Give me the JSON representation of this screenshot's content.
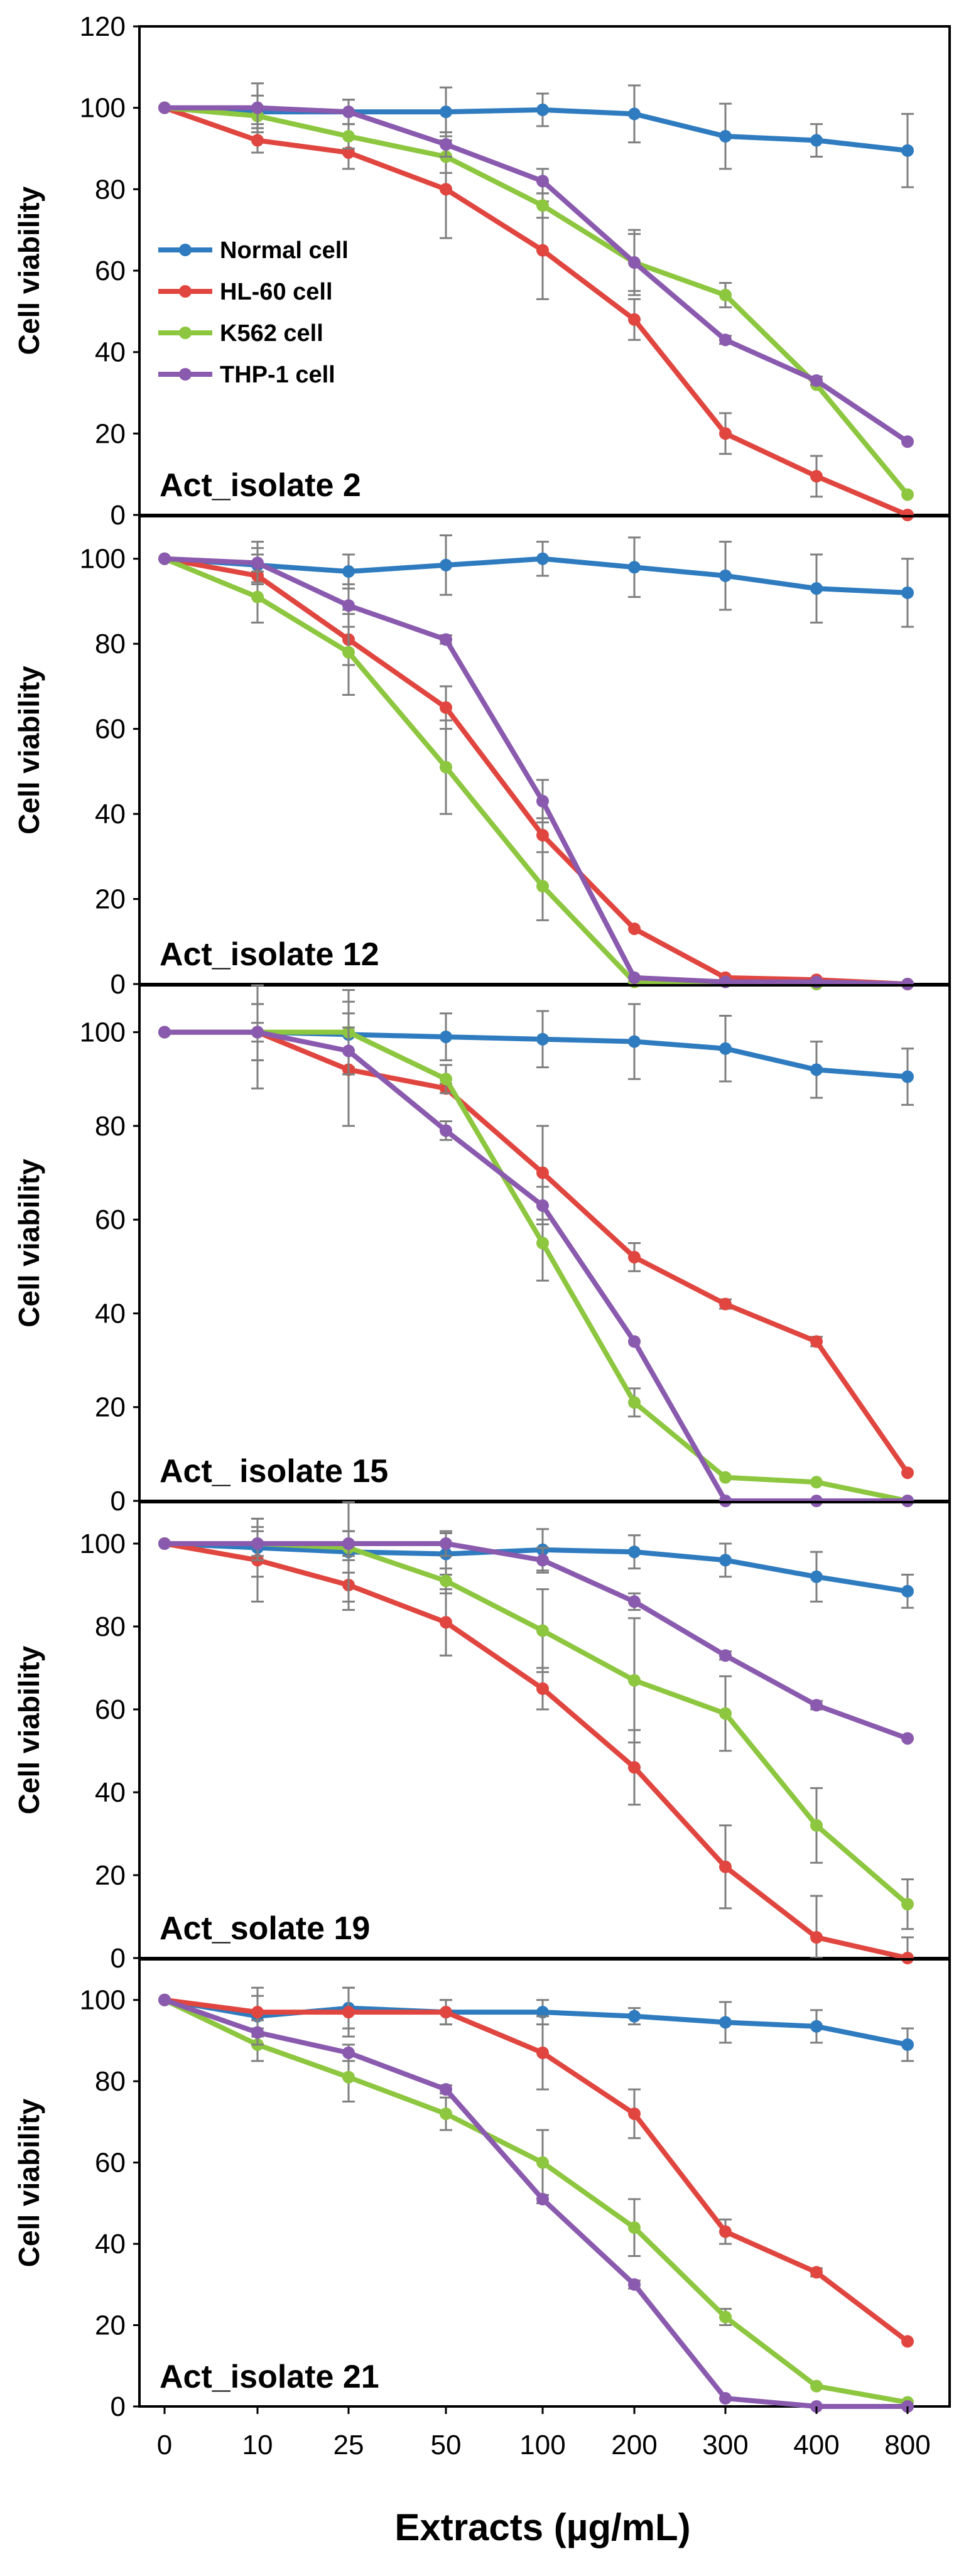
{
  "chart_data": {
    "type": "line",
    "x_categories": [
      "0",
      "10",
      "25",
      "50",
      "100",
      "200",
      "300",
      "400",
      "800"
    ],
    "xlabel": "Extracts (µg/mL)",
    "ylabel": "Cell viability",
    "series_styles": [
      {
        "name": "Normal cell",
        "color": "#2E7BBF"
      },
      {
        "name": "HL-60 cell",
        "color": "#E0463F"
      },
      {
        "name": "K562 cell",
        "color": "#8DC63F"
      },
      {
        "name": "THP-1 cell",
        "color": "#8A5AAE"
      }
    ],
    "panels": [
      {
        "label": "Act_isolate 2",
        "ylim": [
          0,
          120
        ],
        "yticks": [
          "0",
          "20",
          "40",
          "60",
          "80",
          "100",
          "120"
        ],
        "legend": "middle-left",
        "series": [
          {
            "name": "Normal cell",
            "values": [
              100,
              99,
              99,
              99,
              99.5,
              98.5,
              93,
              92,
              89.5
            ],
            "errors": [
              0,
              4,
              3,
              6,
              4,
              7,
              8,
              4,
              9
            ]
          },
          {
            "name": "HL-60 cell",
            "values": [
              100,
              92,
              89,
              80,
              65,
              48,
              20,
              9.5,
              0
            ],
            "errors": [
              0,
              3,
              4,
              12,
              12,
              5,
              5,
              5,
              0
            ]
          },
          {
            "name": "K562 cell",
            "values": [
              100,
              98,
              93,
              88,
              76,
              62,
              54,
              32,
              5
            ],
            "errors": [
              0,
              2,
              3,
              4,
              3,
              8,
              3,
              0,
              0
            ]
          },
          {
            "name": "THP-1 cell",
            "values": [
              100,
              100,
              99,
              91,
              82,
              62,
              43,
              33,
              18
            ],
            "errors": [
              0,
              6,
              3,
              3,
              3,
              7,
              1,
              1,
              0
            ]
          }
        ]
      },
      {
        "label": "Act_isolate 12",
        "ylim": [
          0,
          110
        ],
        "yticks": [
          "0",
          "20",
          "40",
          "60",
          "80",
          "100"
        ],
        "legend": "none",
        "series": [
          {
            "name": "Normal cell",
            "values": [
              100,
              98.5,
              97,
              98.5,
              100,
              98,
              96,
              93,
              92
            ],
            "errors": [
              0,
              4,
              4,
              7,
              4,
              7,
              8,
              8,
              8
            ]
          },
          {
            "name": "HL-60 cell",
            "values": [
              100,
              96,
              81,
              65,
              35,
              13,
              1.5,
              1,
              0
            ],
            "errors": [
              0,
              5,
              6,
              5,
              4,
              0,
              0,
              0,
              0
            ]
          },
          {
            "name": "K562 cell",
            "values": [
              100,
              91,
              78,
              51,
              23,
              0.5,
              0.5,
              0,
              0
            ],
            "errors": [
              0,
              6,
              10,
              11,
              8,
              0,
              0,
              0,
              0
            ]
          },
          {
            "name": "THP-1 cell",
            "values": [
              100,
              99,
              89,
              81,
              43,
              1.5,
              0.5,
              0.5,
              0
            ],
            "errors": [
              0,
              5,
              5,
              1,
              5,
              0,
              0,
              0,
              0
            ]
          }
        ]
      },
      {
        "label": "Act_ isolate 15",
        "ylim": [
          0,
          110
        ],
        "yticks": [
          "0",
          "20",
          "40",
          "60",
          "80",
          "100"
        ],
        "legend": "none",
        "series": [
          {
            "name": "Normal cell",
            "values": [
              100,
              100,
              99.5,
              99,
              98.5,
              98,
              96.5,
              92,
              90.5
            ],
            "errors": [
              0,
              12,
              7,
              5,
              6,
              8,
              7,
              6,
              6
            ]
          },
          {
            "name": "HL-60 cell",
            "values": [
              100,
              100,
              92,
              88,
              70,
              52,
              42,
              34,
              6
            ],
            "errors": [
              0,
              2,
              12,
              1,
              10,
              3,
              1,
              1,
              0
            ]
          },
          {
            "name": "K562 cell",
            "values": [
              100,
              100,
              100,
              90,
              55,
              21,
              5,
              4,
              0
            ],
            "errors": [
              0,
              6,
              9,
              3,
              8,
              3,
              0,
              0,
              0
            ]
          },
          {
            "name": "THP-1 cell",
            "values": [
              100,
              100,
              96,
              79,
              63,
              34,
              0,
              0,
              0
            ],
            "errors": [
              0,
              6,
              5,
              2,
              4,
              0,
              0,
              0,
              0
            ]
          }
        ]
      },
      {
        "label": "Act_solate 19",
        "ylim": [
          0,
          110
        ],
        "yticks": [
          "0",
          "20",
          "40",
          "60",
          "80",
          "100"
        ],
        "legend": "none",
        "series": [
          {
            "name": "Normal cell",
            "values": [
              100,
              99,
              98,
              97.5,
              98.5,
              98,
              96,
              92,
              88.5
            ],
            "errors": [
              0,
              7,
              5,
              5,
              5,
              4,
              4,
              6,
              4
            ]
          },
          {
            "name": "HL-60 cell",
            "values": [
              100,
              96,
              90,
              81,
              65,
              46,
              22,
              5,
              0
            ],
            "errors": [
              0,
              10,
              6,
              8,
              5,
              9,
              10,
              10,
              5
            ]
          },
          {
            "name": "K562 cell",
            "values": [
              100,
              100,
              99,
              91,
              79,
              67,
              59,
              32,
              13
            ],
            "errors": [
              0,
              4,
              13,
              3,
              10,
              15,
              9,
              9,
              6
            ]
          },
          {
            "name": "THP-1 cell",
            "values": [
              100,
              100,
              100,
              100,
              96,
              86,
              73,
              61,
              53
            ],
            "errors": [
              0,
              3,
              3,
              3,
              3,
              2,
              1,
              1,
              0
            ]
          }
        ]
      },
      {
        "label": "Act_isolate 21",
        "ylim": [
          0,
          110
        ],
        "yticks": [
          "0",
          "20",
          "40",
          "60",
          "80",
          "100"
        ],
        "legend": "none",
        "series": [
          {
            "name": "Normal cell",
            "values": [
              100,
              96,
              98,
              97,
              97,
              96,
              94.5,
              93.5,
              89
            ],
            "errors": [
              0,
              5,
              5,
              3,
              3,
              2,
              5,
              4,
              4
            ]
          },
          {
            "name": "HL-60 cell",
            "values": [
              100,
              97,
              97,
              97,
              87,
              72,
              43,
              33,
              16
            ],
            "errors": [
              0,
              6,
              6,
              3,
              9,
              6,
              3,
              1,
              0
            ]
          },
          {
            "name": "K562 cell",
            "values": [
              100,
              89,
              81,
              72,
              60,
              44,
              22,
              5,
              1
            ],
            "errors": [
              0,
              4,
              6,
              4,
              8,
              7,
              2,
              0,
              0
            ]
          },
          {
            "name": "THP-1 cell",
            "values": [
              100,
              92,
              87,
              78,
              51,
              30,
              2,
              0,
              0
            ],
            "errors": [
              0,
              3,
              2,
              1,
              1,
              1,
              0,
              0,
              0
            ]
          }
        ]
      }
    ]
  }
}
